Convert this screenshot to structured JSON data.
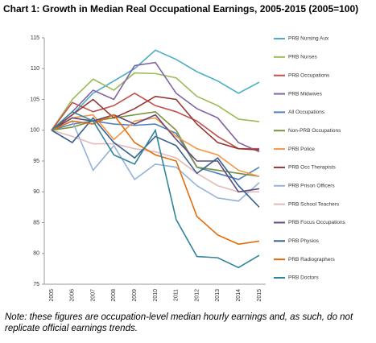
{
  "chart_data": {
    "type": "line",
    "title": "Chart 1: Growth in Median Real Occupational Earnings, 2005-2015 (2005=100)",
    "note": "Note: these figures are occupation-level median hourly earnings and, as such, do not replicate official earnings trends.",
    "categories": [
      "2005",
      "2006",
      "2007",
      "2008",
      "2009",
      "2010",
      "2011",
      "2012",
      "2013",
      "2014",
      "2015"
    ],
    "ylim": [
      75,
      115
    ],
    "yticks": [
      75,
      80,
      85,
      90,
      95,
      100,
      105,
      110,
      115
    ],
    "legend": "right",
    "grid": false,
    "series": [
      {
        "name": "PRB Nursing Aux",
        "color": "#4bacc6",
        "values": [
          100,
          102.5,
          106,
          108,
          110,
          113,
          111.5,
          109.5,
          108,
          106,
          107.8
        ]
      },
      {
        "name": "PRB Nurses",
        "color": "#9bbb59",
        "values": [
          100,
          105,
          108.3,
          106.5,
          109.3,
          109.2,
          108.5,
          105.5,
          104,
          101.8,
          101.4
        ]
      },
      {
        "name": "PRB Occupations",
        "color": "#c0504d",
        "values": [
          100,
          104.5,
          103,
          104,
          106,
          104,
          103,
          101.5,
          99,
          97,
          97
        ]
      },
      {
        "name": "PRB Midwives",
        "color": "#8064a2",
        "values": [
          100,
          103,
          106.5,
          105,
          110.5,
          111,
          106,
          103.5,
          102,
          98,
          96.5
        ]
      },
      {
        "name": "All Occupations",
        "color": "#4f81bd",
        "values": [
          100,
          101,
          101.5,
          101,
          100.8,
          101,
          99.5,
          94,
          93,
          92,
          94
        ]
      },
      {
        "name": "Non-PRB Occupations",
        "color": "#77933c",
        "values": [
          100,
          100.5,
          101.5,
          102,
          102.5,
          103,
          100,
          94,
          93.5,
          93,
          92.5
        ]
      },
      {
        "name": "PRB Police",
        "color": "#f79646",
        "values": [
          100,
          102,
          102.5,
          98.5,
          101.5,
          102,
          99,
          97,
          96,
          93.5,
          92.5
        ]
      },
      {
        "name": "PRB Occ Therapists",
        "color": "#953735",
        "values": [
          100,
          102.5,
          105,
          102,
          103.5,
          105.5,
          105,
          101,
          98,
          97,
          96.8
        ]
      },
      {
        "name": "PRB Prison Officers",
        "color": "#95b3d7",
        "values": [
          100,
          101.5,
          93.5,
          97.5,
          92,
          94.5,
          94,
          91,
          89,
          88.5,
          91.5
        ]
      },
      {
        "name": "PRB School Teachers",
        "color": "#e6b9b8",
        "values": [
          100,
          99,
          97.8,
          97.8,
          97,
          96.5,
          95.5,
          93,
          91,
          90,
          90
        ]
      },
      {
        "name": "PRB Focus Occupations",
        "color": "#604a7b",
        "values": [
          100,
          102,
          101.5,
          102.5,
          101,
          102.5,
          98.5,
          95,
          95,
          90,
          90.5
        ]
      },
      {
        "name": "PRB Physios",
        "color": "#376092",
        "values": [
          100,
          98,
          102,
          98,
          95.5,
          99,
          97.5,
          93,
          95.5,
          91,
          87.5
        ]
      },
      {
        "name": "PRB Radiographers",
        "color": "#e46c0a",
        "values": [
          100,
          101.5,
          101,
          102.5,
          98,
          96,
          95,
          86,
          83,
          81.5,
          82
        ]
      },
      {
        "name": "PRB Doctors",
        "color": "#31859c",
        "values": [
          100,
          103,
          101.5,
          96,
          94.5,
          100,
          85.5,
          79.5,
          79.3,
          77.7,
          79.7
        ]
      }
    ]
  }
}
